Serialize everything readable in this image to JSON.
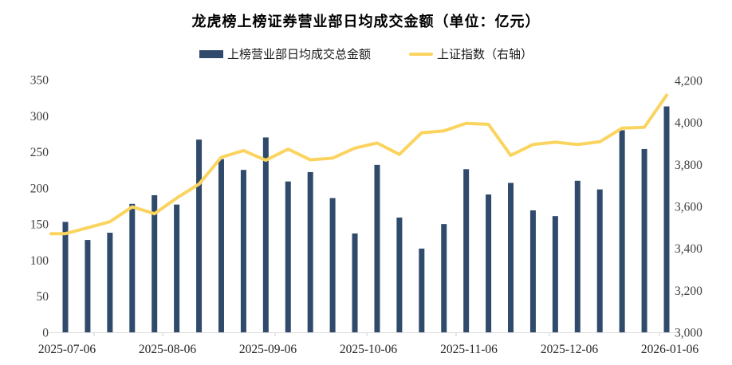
{
  "title": "龙虎榜上榜证券营业部日均成交金额（单位：亿元）",
  "legend": [
    {
      "label": "上榜营业部日均成交总金额",
      "type": "bar",
      "color": "#2F4A6B"
    },
    {
      "label": "上证指数（右轴）",
      "type": "line",
      "color": "#FBD45F"
    }
  ],
  "colors": {
    "bar": "#2F4A6B",
    "line": "#FBD45F",
    "axis_text": "#3F3F3F",
    "x_text": "#262626",
    "axis_line": "#DCDCDC"
  },
  "chart_data": {
    "type": "bar+line",
    "title": "龙虎榜上榜证券营业部日均成交金额（单位：亿元）",
    "x_ticklabels": [
      "2025-07-06",
      "2025-08-06",
      "2025-09-06",
      "2025-10-06",
      "2025-11-06",
      "2025-12-06",
      "2026-01-06"
    ],
    "series": [
      {
        "name": "上榜营业部日均成交总金额",
        "type": "bar",
        "axis": "left",
        "color": "#2F4A6B",
        "values": [
          153,
          128,
          138,
          178,
          190,
          177,
          267,
          240,
          225,
          270,
          209,
          222,
          186,
          137,
          232,
          159,
          116,
          150,
          226,
          191,
          207,
          169,
          161,
          210,
          198,
          280,
          254,
          313
        ]
      },
      {
        "name": "上证指数（右轴）",
        "type": "line",
        "axis": "right",
        "color": "#FBD45F",
        "values": [
          3470,
          3498,
          3527,
          3598,
          3565,
          3640,
          3706,
          3834,
          3866,
          3820,
          3873,
          3822,
          3830,
          3878,
          3902,
          3848,
          3951,
          3960,
          3996,
          3991,
          3843,
          3895,
          3906,
          3895,
          3908,
          3973,
          3977,
          4130
        ]
      }
    ],
    "left_axis": {
      "min": 0,
      "max": 350,
      "step": 50,
      "tick_labels": [
        "0",
        "50",
        "100",
        "150",
        "200",
        "250",
        "300",
        "350"
      ]
    },
    "right_axis": {
      "min": 3000,
      "max": 4200,
      "step": 200,
      "tick_labels": [
        "3,000",
        "3,200",
        "3,400",
        "3,600",
        "3,800",
        "4,000",
        "4,200"
      ]
    },
    "grid": false,
    "legend_position": "top"
  }
}
